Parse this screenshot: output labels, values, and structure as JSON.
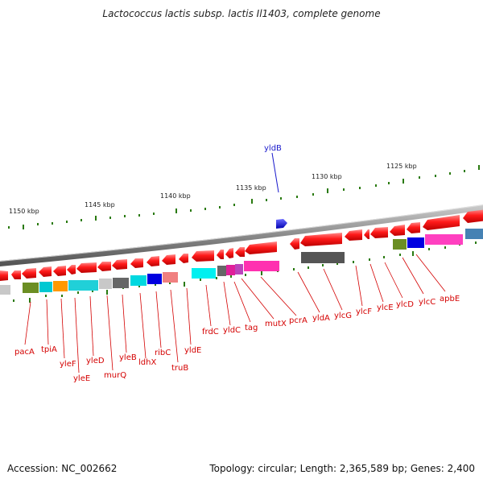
{
  "header": {
    "title": "Lactococcus lactis subsp. lactis Il1403, complete genome"
  },
  "footer": {
    "accession": "Accession: NC_002662",
    "summary": "Topology: circular; Length: 2,365,589 bp; Genes: 2,400"
  },
  "scale_labels": [
    "1150 kbp",
    "1145 kbp",
    "1140 kbp",
    "1135 kbp",
    "1130 kbp",
    "1125 kbp"
  ],
  "gene_labels": [
    "pacA",
    "tpiA",
    "yleF",
    "yleE",
    "yleD",
    "murQ",
    "yleB",
    "ldhX",
    "ribC",
    "truB",
    "yldE",
    "frdC",
    "yldC",
    "tag",
    "mutX",
    "pcrA",
    "yldA",
    "ylcG",
    "ylcF",
    "ylcE",
    "ylcD",
    "ylcC",
    "apbE"
  ],
  "highlight_label": "yldB",
  "colors": {
    "gene_red": "#ee1111",
    "label_red": "#d40000",
    "highlight_blue": "#1a1acc",
    "tick_green": "#2a7a10",
    "backbone_grey": "#777777"
  }
}
